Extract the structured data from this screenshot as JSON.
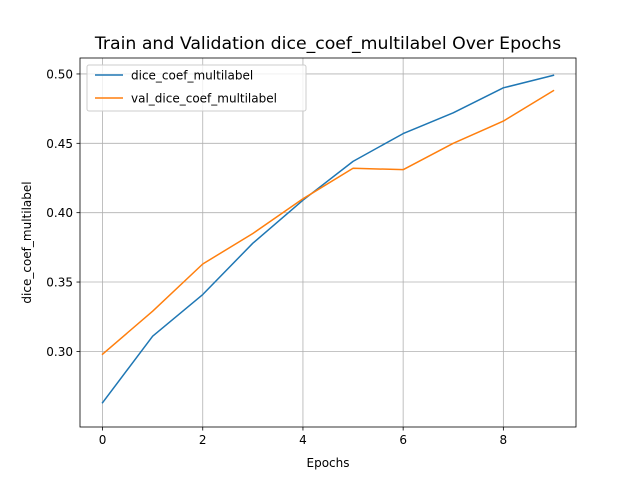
{
  "chart_data": {
    "type": "line",
    "title": "Train and Validation dice_coef_multilabel Over Epochs",
    "xlabel": "Epochs",
    "ylabel": "dice_coef_multilabel",
    "xlim": [
      -0.45,
      9.45
    ],
    "ylim": [
      0.2455,
      0.5115
    ],
    "x": [
      0,
      1,
      2,
      3,
      4,
      5,
      6,
      7,
      8,
      9
    ],
    "xticks": [
      0,
      2,
      4,
      6,
      8
    ],
    "xtick_labels": [
      "0",
      "2",
      "4",
      "6",
      "8"
    ],
    "yticks": [
      0.3,
      0.35,
      0.4,
      0.45,
      0.5
    ],
    "ytick_labels": [
      "0.30",
      "0.35",
      "0.40",
      "0.45",
      "0.50"
    ],
    "grid": true,
    "legend_position": "top-left",
    "series": [
      {
        "name": "dice_coef_multilabel",
        "color": "#1f77b4",
        "values": [
          0.263,
          0.311,
          0.341,
          0.378,
          0.409,
          0.437,
          0.457,
          0.472,
          0.49,
          0.499
        ]
      },
      {
        "name": "val_dice_coef_multilabel",
        "color": "#ff7f0e",
        "values": [
          0.298,
          0.329,
          0.363,
          0.385,
          0.41,
          0.432,
          0.431,
          0.45,
          0.466,
          0.488
        ]
      }
    ]
  }
}
